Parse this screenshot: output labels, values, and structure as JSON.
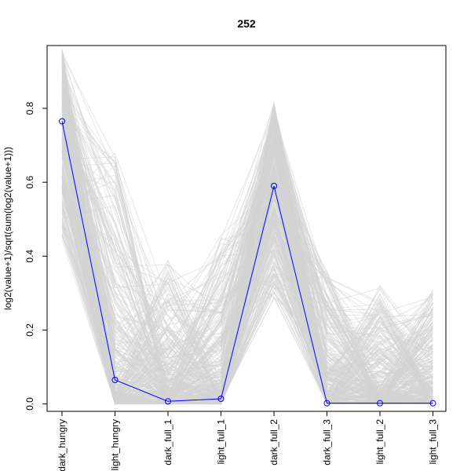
{
  "chart_data": {
    "type": "line",
    "title": "252",
    "ylabel": "log2(value+1)/sqrt(sum(log2(value+1)))",
    "xlabel": "",
    "categories": [
      "dark_hungry",
      "light_hungry",
      "dark_full_1",
      "light_full_1",
      "dark_full_2",
      "dark_full_3",
      "light_full_2",
      "light_full_3"
    ],
    "y_ticks": [
      0.0,
      0.2,
      0.4,
      0.6,
      0.8
    ],
    "y_tick_labels": [
      "0.0",
      "0.2",
      "0.4",
      "0.6",
      "0.8"
    ],
    "ylim": [
      -0.02,
      0.97
    ],
    "grid": false,
    "legend": "none",
    "highlight_series": {
      "values": [
        0.765,
        0.065,
        0.007,
        0.014,
        0.59,
        0.002,
        0.002,
        0.002
      ],
      "color": "#0000ff",
      "markers": "open-circle"
    },
    "background_series": {
      "color": "#d3d3d3",
      "approx_ranges": [
        [
          0.44,
          0.96
        ],
        [
          0.0,
          0.68
        ],
        [
          0.0,
          0.39
        ],
        [
          0.0,
          0.46
        ],
        [
          0.28,
          0.82
        ],
        [
          0.0,
          0.36
        ],
        [
          0.0,
          0.32
        ],
        [
          0.0,
          0.31
        ]
      ]
    }
  }
}
